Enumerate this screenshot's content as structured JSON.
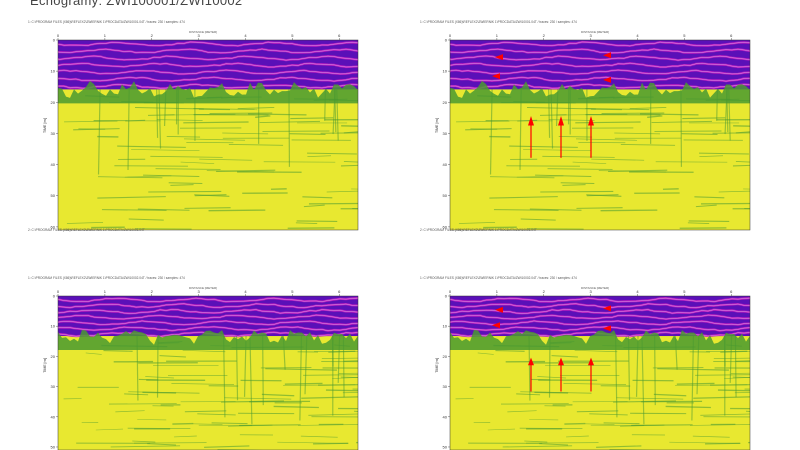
{
  "page": {
    "title": "Echogramy: ZWI100001/ZWI10002"
  },
  "panels": [
    {
      "header": "1: C:\\PROGRAM FILES (X86)\\REFLEX2\\ZWIERNIK 1\\PROCDATA\\ZWI10001.04T / traces: 230 / samples: 474",
      "axis_title": "DISTANCE [METER]",
      "footer": "2: C:\\PROGRAM FILES (X86)\\REFLEX2\\ZWIERNIK 1\\PROCDATA\\ZWI10001.04T",
      "x_ticks": [
        "0",
        "1",
        "2",
        "3",
        "4",
        "5",
        "6"
      ],
      "y_ticks": [
        "0",
        "10",
        "20",
        "30",
        "40",
        "50",
        "60"
      ],
      "y_label": "TIME [ns]",
      "annotated": false
    },
    {
      "header": "1: C:\\PROGRAM FILES (X86)\\REFLEX2\\ZWIERNIK 1\\PROCDATA\\ZWI10001.04T / traces: 230 / samples: 474",
      "axis_title": "DISTANCE [METER]",
      "footer": "2: C:\\PROGRAM FILES (X86)\\REFLEX2\\ZWIERNIK 1\\PROCDATA\\ZWI10001.04T",
      "x_ticks": [
        "0",
        "1",
        "2",
        "3",
        "4",
        "5",
        "6"
      ],
      "y_ticks": [
        "0",
        "10",
        "20",
        "30",
        "40",
        "50",
        "60"
      ],
      "y_label": "TIME [ns]",
      "annotated": true
    },
    {
      "header": "1: C:\\PROGRAM FILES (X86)\\REFLEX2\\ZWIERNIK 1\\PROCDATA\\ZWI10002.04T / traces: 230 / samples: 474",
      "axis_title": "DISTANCE [METER]",
      "footer": "",
      "x_ticks": [
        "0",
        "1",
        "2",
        "3",
        "4",
        "5",
        "6"
      ],
      "y_ticks": [
        "0",
        "10",
        "20",
        "30",
        "40",
        "50"
      ],
      "y_label": "TIME [ns]",
      "annotated": false
    },
    {
      "header": "1: C:\\PROGRAM FILES (X86)\\REFLEX2\\ZWIERNIK 1\\PROCDATA\\ZWI10002.04T / traces: 230 / samples: 474",
      "axis_title": "DISTANCE [METER]",
      "footer": "",
      "x_ticks": [
        "0",
        "1",
        "2",
        "3",
        "4",
        "5",
        "6"
      ],
      "y_ticks": [
        "0",
        "10",
        "20",
        "30",
        "40",
        "50"
      ],
      "y_label": "TIME [ns]",
      "annotated": true
    }
  ],
  "colors": {
    "purple": "#5a10b8",
    "magenta": "#c020c0",
    "green": "#4a9a30",
    "yellow": "#e8e830",
    "annotation": "#ff0000"
  }
}
